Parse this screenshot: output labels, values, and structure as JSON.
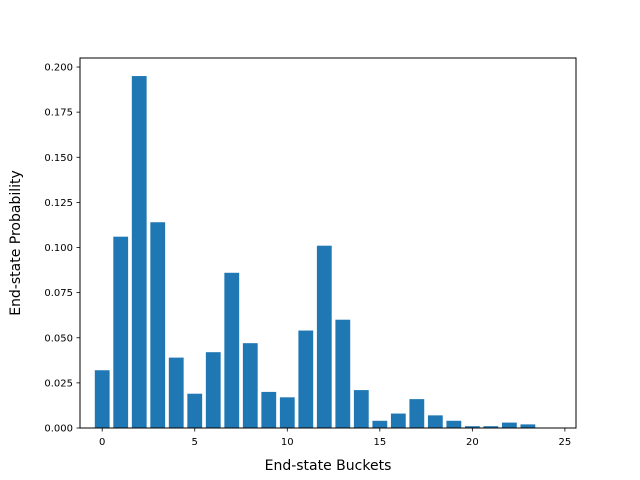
{
  "chart_data": {
    "type": "bar",
    "title": "",
    "xlabel": "End-state Buckets",
    "ylabel": "End-state Probability",
    "x": [
      0,
      1,
      2,
      3,
      4,
      5,
      6,
      7,
      8,
      9,
      10,
      11,
      12,
      13,
      14,
      15,
      16,
      17,
      18,
      19,
      20,
      21,
      22,
      23
    ],
    "values": [
      0.032,
      0.106,
      0.195,
      0.114,
      0.039,
      0.019,
      0.042,
      0.086,
      0.047,
      0.02,
      0.017,
      0.054,
      0.101,
      0.06,
      0.021,
      0.004,
      0.008,
      0.016,
      0.007,
      0.004,
      0.001,
      0.001,
      0.003,
      0.002
    ],
    "xlim": [
      -1.2,
      25.6
    ],
    "ylim": [
      0,
      0.205
    ],
    "xticks": [
      0,
      5,
      10,
      15,
      20,
      25
    ],
    "xtick_labels": [
      "0",
      "5",
      "10",
      "15",
      "20",
      "25"
    ],
    "yticks": [
      0,
      0.025,
      0.05,
      0.075,
      0.1,
      0.125,
      0.15,
      0.175,
      0.2
    ],
    "ytick_labels": [
      "0.000",
      "0.025",
      "0.050",
      "0.075",
      "0.100",
      "0.125",
      "0.150",
      "0.175",
      "0.200"
    ],
    "grid": false,
    "bar_color": "#1f77b4"
  }
}
